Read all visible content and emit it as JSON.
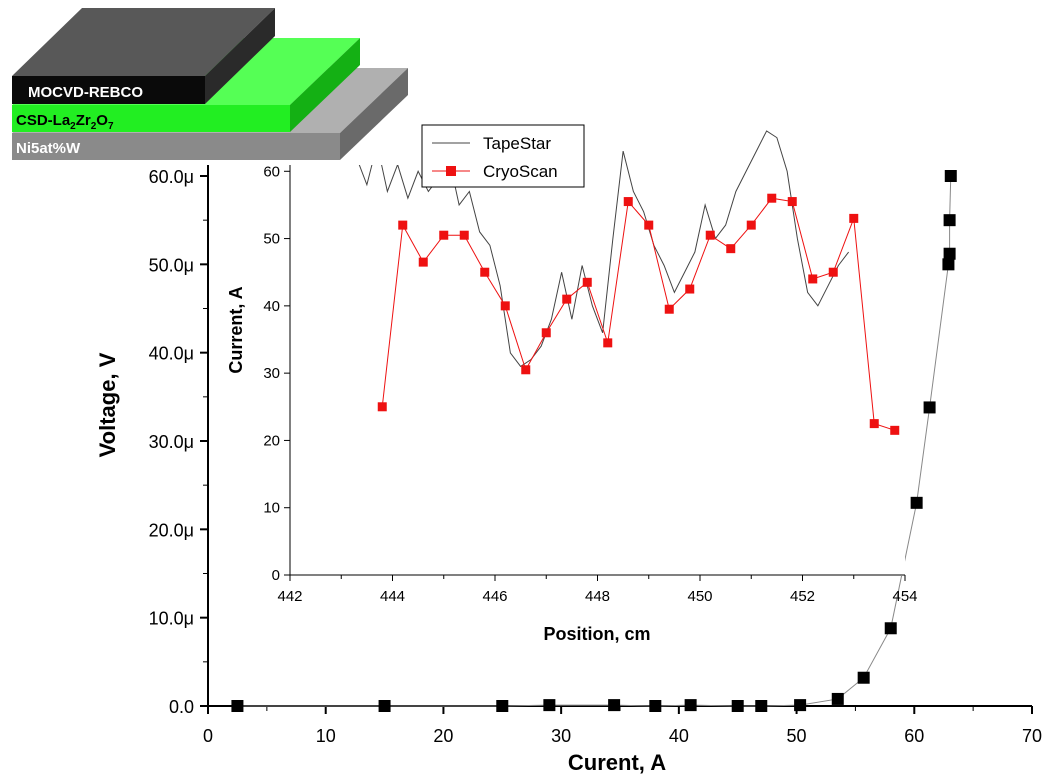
{
  "layer_stack": {
    "top": "MOCVD-REBCO",
    "middle_prefix": "CSD-La",
    "middle_sub1": "2",
    "middle_mid": "Zr",
    "middle_sub2": "2",
    "middle_o": "O",
    "middle_sub3": "7",
    "bottom": "Ni5at%W",
    "colors": {
      "top": "#1a1a1a",
      "middle": "#22ee22",
      "bottom": "#8a8a8a"
    }
  },
  "chart_data": [
    {
      "type": "scatter",
      "title": "",
      "xlabel": "Curent, A",
      "ylabel": "Voltage, V",
      "xlim": [
        0,
        70
      ],
      "ylim": [
        0,
        60
      ],
      "x_ticks": [
        "0",
        "10",
        "20",
        "30",
        "40",
        "50",
        "60",
        "70"
      ],
      "y_ticks": [
        "0.0",
        "10.0μ",
        "20.0μ",
        "30.0μ",
        "40.0μ",
        "50.0μ",
        "60.0μ"
      ],
      "y_unit": "μV",
      "series": [
        {
          "color": "#000000",
          "marker": "square",
          "points": [
            [
              2.5,
              0.0
            ],
            [
              15,
              0.0
            ],
            [
              25,
              0.0
            ],
            [
              29,
              0.1
            ],
            [
              34.5,
              0.1
            ],
            [
              38,
              0.0
            ],
            [
              41,
              0.1
            ],
            [
              45,
              0.0
            ],
            [
              47,
              0.0
            ],
            [
              50.3,
              0.1
            ],
            [
              53.5,
              0.8
            ],
            [
              55.7,
              3.2
            ],
            [
              58,
              8.8
            ],
            [
              60.2,
              23.0
            ],
            [
              61.3,
              33.8
            ],
            [
              62.9,
              50.0
            ],
            [
              63.0,
              51.2
            ],
            [
              63.0,
              55.0
            ],
            [
              63.1,
              60.0
            ]
          ]
        }
      ]
    },
    {
      "type": "line",
      "title": "",
      "xlabel": "Position, cm",
      "ylabel": "Current, A",
      "xlim": [
        442,
        454
      ],
      "ylim": [
        0,
        70
      ],
      "x_ticks": [
        "442",
        "444",
        "446",
        "448",
        "450",
        "452",
        "454"
      ],
      "y_ticks": [
        "0",
        "10",
        "20",
        "30",
        "40",
        "50",
        "60"
      ],
      "legend_position": "top-left",
      "series": [
        {
          "name": "TapeStar",
          "color": "#444444",
          "marker": "none",
          "points": [
            [
              443.1,
              70
            ],
            [
              443.3,
              62
            ],
            [
              443.5,
              58
            ],
            [
              443.7,
              64
            ],
            [
              443.9,
              57
            ],
            [
              444.1,
              61
            ],
            [
              444.3,
              56
            ],
            [
              444.5,
              60
            ],
            [
              444.7,
              57
            ],
            [
              444.9,
              59
            ],
            [
              445.1,
              62
            ],
            [
              445.3,
              55
            ],
            [
              445.5,
              57
            ],
            [
              445.7,
              51
            ],
            [
              445.9,
              49
            ],
            [
              446.1,
              43
            ],
            [
              446.3,
              33
            ],
            [
              446.5,
              31
            ],
            [
              446.7,
              32
            ],
            [
              446.9,
              34
            ],
            [
              447.1,
              38
            ],
            [
              447.3,
              45
            ],
            [
              447.5,
              38
            ],
            [
              447.7,
              46
            ],
            [
              447.9,
              40
            ],
            [
              448.1,
              36
            ],
            [
              448.3,
              50
            ],
            [
              448.5,
              63
            ],
            [
              448.7,
              57
            ],
            [
              448.9,
              54
            ],
            [
              449.1,
              49
            ],
            [
              449.3,
              46
            ],
            [
              449.5,
              42
            ],
            [
              449.7,
              45
            ],
            [
              449.9,
              48
            ],
            [
              450.1,
              55
            ],
            [
              450.3,
              50
            ],
            [
              450.5,
              52
            ],
            [
              450.7,
              57
            ],
            [
              450.9,
              60
            ],
            [
              451.1,
              63
            ],
            [
              451.3,
              66
            ],
            [
              451.5,
              65
            ],
            [
              451.7,
              60
            ],
            [
              451.9,
              50
            ],
            [
              452.1,
              42
            ],
            [
              452.3,
              40
            ],
            [
              452.5,
              43
            ],
            [
              452.7,
              46
            ],
            [
              452.9,
              48
            ]
          ]
        },
        {
          "name": "CryoScan",
          "color": "#ee1111",
          "marker": "square",
          "points": [
            [
              443.8,
              25
            ],
            [
              444.2,
              52
            ],
            [
              444.6,
              46.5
            ],
            [
              445.0,
              50.5
            ],
            [
              445.4,
              50.5
            ],
            [
              445.8,
              45
            ],
            [
              446.2,
              40
            ],
            [
              446.6,
              30.5
            ],
            [
              447.0,
              36
            ],
            [
              447.4,
              41
            ],
            [
              447.8,
              43.5
            ],
            [
              448.2,
              34.5
            ],
            [
              448.6,
              55.5
            ],
            [
              449.0,
              52
            ],
            [
              449.4,
              39.5
            ],
            [
              449.8,
              42.5
            ],
            [
              450.2,
              50.5
            ],
            [
              450.6,
              48.5
            ],
            [
              451.0,
              52
            ],
            [
              451.4,
              56
            ],
            [
              451.8,
              55.5
            ],
            [
              452.2,
              44
            ],
            [
              452.6,
              45
            ],
            [
              453.0,
              53
            ],
            [
              453.4,
              22.5
            ],
            [
              453.8,
              21.5
            ]
          ]
        }
      ]
    }
  ]
}
